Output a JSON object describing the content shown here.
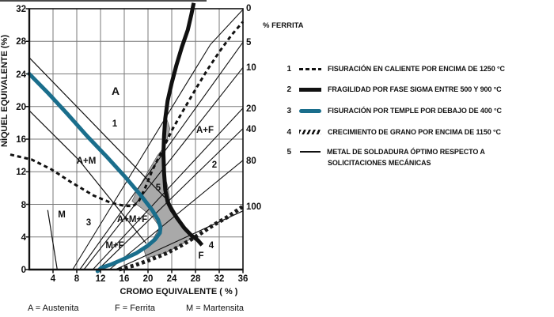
{
  "colors": {
    "teal": "#1a6e8c",
    "black": "#111111",
    "gray_region": "#a9a9a9",
    "grid": "#7a7a7a"
  },
  "y_axis": {
    "title": "NÍQUEL EQUIVALENTE (%)",
    "ticks": [
      "32",
      "28",
      "24",
      "20",
      "16",
      "12",
      "8",
      "4",
      "0"
    ]
  },
  "x_axis": {
    "title": "CROMO EQUIVALENTE ( % )",
    "ticks": [
      "4",
      "8",
      "12",
      "16",
      "20",
      "24",
      "28",
      "32",
      "36"
    ]
  },
  "ferrite_axis": {
    "title": "% FERRITA",
    "ticks": [
      "0",
      "5",
      "10",
      "20",
      "40",
      "80",
      "100"
    ]
  },
  "region_labels": {
    "a": "A",
    "n1": "1",
    "apf": "A+F",
    "n2": "2",
    "apm": "A+M",
    "n5": "5",
    "m": "M",
    "n3": "3",
    "apmf": "A+M+F",
    "mpf": "M+F",
    "n4": "4",
    "f": "F"
  },
  "footnote": {
    "a": "A = Austenita",
    "f": "F = Ferrita",
    "m": "M = Martensita"
  },
  "legend": {
    "items": [
      {
        "num": "1",
        "text": "FISURACIÓN EN CALIENTE POR ENCIMA DE 1250 °C"
      },
      {
        "num": "2",
        "text": "FRAGILIDAD POR FASE SIGMA ENTRE 500 Y 900 °C"
      },
      {
        "num": "3",
        "text": "FISURACIÓN POR TEMPLE POR DEBAJO DE 400 °C"
      },
      {
        "num": "4",
        "text": "CRECIMIENTO DE GRANO POR ENCIMA DE 1150 °C"
      },
      {
        "num": "5",
        "text": "METAL DE SOLDADURA ÓPTIMO RESPECTO A"
      }
    ],
    "item5_line2": "SOLICITACIONES MECÁNICAS"
  },
  "chart_data": {
    "type": "line",
    "title": "Schaeffler constitution diagram with welding problem zones",
    "xlabel": "CROMO EQUIVALENTE (%)",
    "ylabel": "NÍQUEL EQUIVALENTE (%)",
    "xlim": [
      0,
      36
    ],
    "ylim": [
      0,
      32
    ],
    "x_ticks": [
      4,
      8,
      12,
      16,
      20,
      24,
      28,
      32,
      36
    ],
    "y_ticks": [
      0,
      4,
      8,
      12,
      16,
      20,
      24,
      28,
      32
    ],
    "grid": true,
    "legend_position": "right",
    "ferrite_percent_lines": [
      {
        "label": "0",
        "points": [
          [
            7.3,
            0
          ],
          [
            16.4,
            10.8
          ],
          [
            25.7,
            21.9
          ],
          [
            30.5,
            27.6
          ],
          [
            36,
            31.9
          ]
        ]
      },
      {
        "label": "5",
        "points": [
          [
            8.5,
            0
          ],
          [
            36,
            27.9
          ]
        ]
      },
      {
        "label": "10",
        "points": [
          [
            9.2,
            0
          ],
          [
            36,
            24.8
          ]
        ]
      },
      {
        "label": "20",
        "points": [
          [
            10.7,
            0
          ],
          [
            36,
            19.8
          ]
        ]
      },
      {
        "label": "40",
        "points": [
          [
            11.6,
            0
          ],
          [
            36,
            17.3
          ]
        ]
      },
      {
        "label": "80",
        "points": [
          [
            13.5,
            0
          ],
          [
            36,
            13.4
          ]
        ]
      },
      {
        "label": "100",
        "points": [
          [
            14.5,
            0
          ],
          [
            36,
            7.2
          ]
        ]
      }
    ],
    "boundary_lines": [
      {
        "name": "A-AM-boundary",
        "points": [
          [
            0,
            26.0
          ],
          [
            22.9,
            8.8
          ]
        ]
      },
      {
        "name": "AM-M-boundary",
        "points": [
          [
            0,
            19.5
          ],
          [
            8.4,
            13.4
          ],
          [
            19.7,
            3.2
          ]
        ]
      },
      {
        "name": "M-corner-line",
        "points": [
          [
            3.1,
            7.3
          ],
          [
            4.7,
            0
          ]
        ]
      }
    ],
    "curves": [
      {
        "id": 1,
        "name": "FISURACIÓN EN CALIENTE POR ENCIMA DE 1250 °C",
        "style": "dashed-black",
        "points": [
          [
            -3.2,
            14.1
          ],
          [
            0.4,
            13.5
          ],
          [
            3.7,
            12.3
          ],
          [
            7.1,
            10.7
          ],
          [
            10.8,
            9.1
          ],
          [
            13.7,
            8.2
          ],
          [
            16.1,
            7.8
          ],
          [
            17.5,
            7.8
          ],
          [
            18.4,
            8.3
          ],
          [
            19.5,
            10.0
          ],
          [
            20.8,
            12.3
          ],
          [
            22.4,
            14.6
          ],
          [
            24.1,
            17.2
          ],
          [
            26.0,
            19.6
          ],
          [
            28.0,
            22.1
          ],
          [
            30.0,
            24.5
          ],
          [
            32.0,
            26.7
          ],
          [
            34.0,
            28.7
          ],
          [
            36.0,
            30.4
          ]
        ]
      },
      {
        "id": 2,
        "name": "FRAGILIDAD POR FASE SIGMA ENTRE 500 Y 900 °C",
        "style": "thick-black",
        "points": [
          [
            27.7,
            32.7
          ],
          [
            27.3,
            31.3
          ],
          [
            26.7,
            29.4
          ],
          [
            25.7,
            27.3
          ],
          [
            24.8,
            25.1
          ],
          [
            24.0,
            22.9
          ],
          [
            23.3,
            20.7
          ],
          [
            22.9,
            18.5
          ],
          [
            22.7,
            16.4
          ],
          [
            22.6,
            14.2
          ],
          [
            22.7,
            11.9
          ],
          [
            22.9,
            9.8
          ],
          [
            23.3,
            8.3
          ],
          [
            24.0,
            7.3
          ],
          [
            24.9,
            6.3
          ],
          [
            26.1,
            5.1
          ],
          [
            27.3,
            4.2
          ],
          [
            28.4,
            3.6
          ],
          [
            29.1,
            3.0
          ]
        ]
      },
      {
        "id": 3,
        "name": "FISURACIÓN POR TEMPLE POR DEBAJO DE 400 °C",
        "style": "thick-teal",
        "points": [
          [
            0,
            24.0
          ],
          [
            3.1,
            21.7
          ],
          [
            6.4,
            19.1
          ],
          [
            9.7,
            16.4
          ],
          [
            13.1,
            13.8
          ],
          [
            16.1,
            11.4
          ],
          [
            18.8,
            9.1
          ],
          [
            20.7,
            7.3
          ],
          [
            21.7,
            6.1
          ],
          [
            22.1,
            5.2
          ],
          [
            22.0,
            4.5
          ],
          [
            21.2,
            3.7
          ],
          [
            19.9,
            2.9
          ],
          [
            18.0,
            2.0
          ],
          [
            15.9,
            1.3
          ],
          [
            13.7,
            0.6
          ],
          [
            12.1,
            0.2
          ],
          [
            11.5,
            -0.2
          ]
        ]
      },
      {
        "id": 4,
        "name": "CRECIMIENTO DE GRANO POR ENCIMA DE 1150 °C",
        "style": "hatched-black",
        "points": [
          [
            15.1,
            0
          ],
          [
            17.7,
            0.5
          ],
          [
            20.4,
            1.2
          ],
          [
            23.1,
            2.0
          ],
          [
            25.7,
            3.0
          ],
          [
            28.4,
            4.2
          ],
          [
            31.1,
            5.5
          ],
          [
            33.5,
            6.5
          ],
          [
            35.9,
            7.7
          ]
        ]
      },
      {
        "id": 5,
        "name": "METAL DE SOLDADURA ÓPTIMO RESPECTO A SOLICITACIONES MECÁNICAS",
        "style": "shaded-zone",
        "points": [
          [
            23.1,
            18.6
          ],
          [
            23.7,
            17.3
          ],
          [
            22.9,
            15.2
          ],
          [
            21.6,
            14.0
          ],
          [
            19.9,
            11.9
          ],
          [
            18.1,
            9.6
          ],
          [
            17.3,
            8.4
          ],
          [
            18.8,
            7.6
          ],
          [
            20.8,
            6.4
          ],
          [
            22.0,
            5.2
          ],
          [
            20.8,
            3.7
          ],
          [
            19.3,
            2.5
          ],
          [
            19.7,
            1.4
          ],
          [
            23.1,
            2.1
          ],
          [
            25.7,
            3.1
          ],
          [
            27.5,
            3.9
          ],
          [
            26.5,
            4.9
          ],
          [
            24.9,
            6.7
          ],
          [
            23.7,
            8.2
          ],
          [
            23.5,
            9.6
          ],
          [
            22.8,
            11.7
          ],
          [
            22.7,
            14.2
          ],
          [
            22.7,
            16.1
          ],
          [
            22.8,
            17.6
          ]
        ]
      }
    ]
  }
}
